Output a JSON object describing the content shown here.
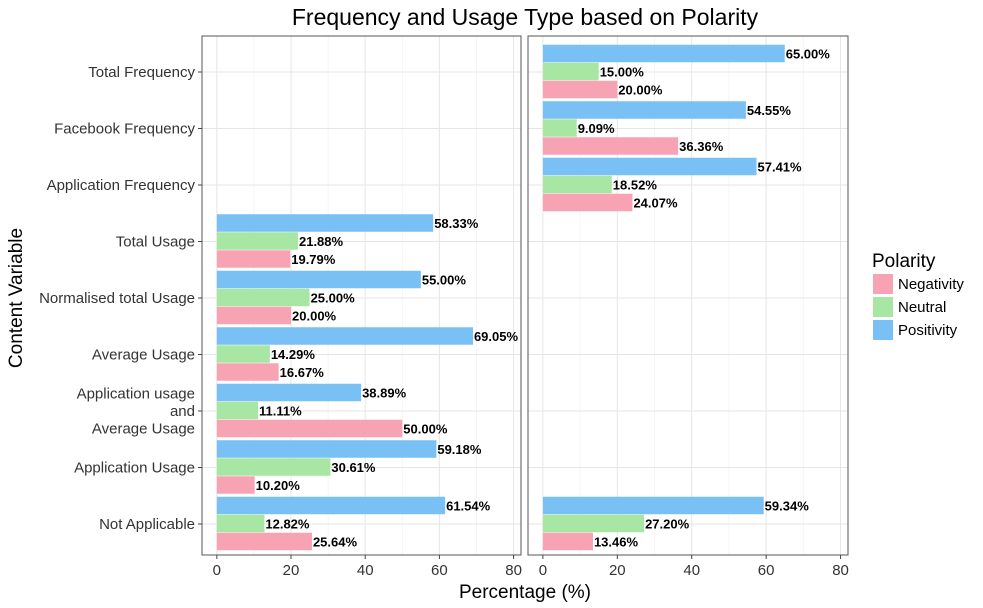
{
  "chart_data": {
    "type": "bar",
    "orientation": "horizontal",
    "title": "Frequency and Usage Type based on Polarity",
    "xlabel": "Percentage (%)",
    "ylabel": "Content Variable",
    "xlim": [
      -4,
      82
    ],
    "xticks": [
      0,
      20,
      40,
      60,
      80
    ],
    "value_suffix": "%",
    "grid": true,
    "legend": {
      "title": "Polarity",
      "position": "right"
    },
    "categories": [
      "Total Frequency",
      "Facebook Frequency",
      "Application Frequency",
      "Total Usage",
      "Normalised total Usage",
      "Average Usage",
      "Application usage\nand\nAverage Usage",
      "Application Usage",
      "Not Applicable"
    ],
    "series": [
      {
        "name": "Negativity",
        "color": "#f8a3b3"
      },
      {
        "name": "Neutral",
        "color": "#a8e6a3"
      },
      {
        "name": "Positivity",
        "color": "#79c0f5"
      }
    ],
    "panels": [
      {
        "name": "left",
        "values": {
          "Negativity": [
            null,
            null,
            null,
            19.79,
            20.0,
            16.67,
            50.0,
            10.2,
            25.64
          ],
          "Neutral": [
            null,
            null,
            null,
            21.88,
            25.0,
            14.29,
            11.11,
            30.61,
            12.82
          ],
          "Positivity": [
            null,
            null,
            null,
            58.33,
            55.0,
            69.05,
            38.89,
            59.18,
            61.54
          ]
        }
      },
      {
        "name": "right",
        "values": {
          "Negativity": [
            20.0,
            36.36,
            24.07,
            null,
            null,
            null,
            null,
            null,
            13.46
          ],
          "Neutral": [
            15.0,
            9.09,
            18.52,
            null,
            null,
            null,
            null,
            null,
            27.2
          ],
          "Positivity": [
            65.0,
            54.55,
            57.41,
            null,
            null,
            null,
            null,
            null,
            59.34
          ]
        }
      }
    ]
  }
}
